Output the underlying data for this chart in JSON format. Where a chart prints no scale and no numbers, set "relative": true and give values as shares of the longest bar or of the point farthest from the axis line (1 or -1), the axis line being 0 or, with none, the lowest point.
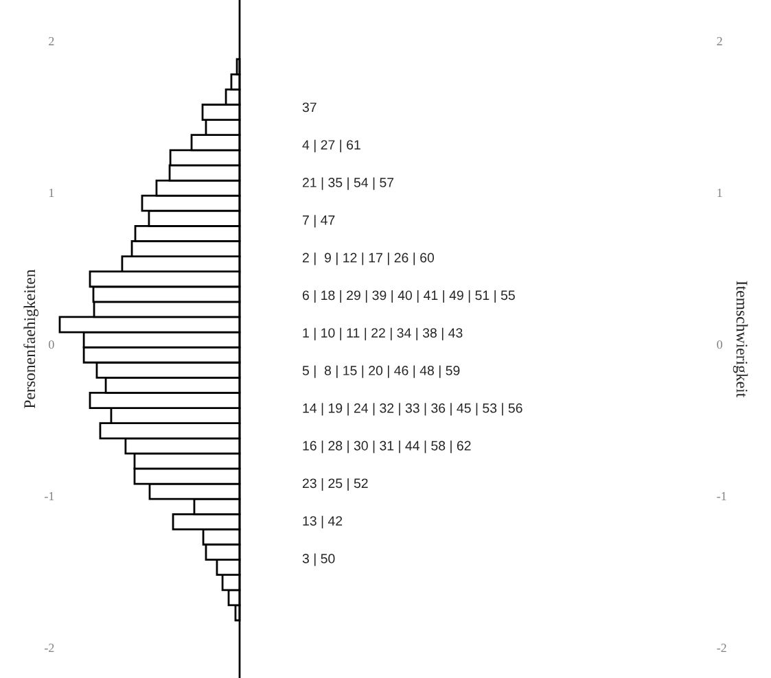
{
  "chart_data": {
    "type": "bar",
    "orientation": "horizontal",
    "relative": true,
    "x": [
      -1.77,
      -1.67,
      -1.57,
      -1.47,
      -1.37,
      -1.27,
      -1.17,
      -1.07,
      -0.97,
      -0.87,
      -0.77,
      -0.67,
      -0.57,
      -0.47,
      -0.37,
      -0.27,
      -0.17,
      -0.07,
      0.03,
      0.13,
      0.23,
      0.33,
      0.43,
      0.53,
      0.63,
      0.73,
      0.83,
      0.93,
      1.03,
      1.13,
      1.23,
      1.33,
      1.43,
      1.53,
      1.63,
      1.73,
      1.83
    ],
    "values": [
      0.023,
      0.061,
      0.095,
      0.126,
      0.187,
      0.202,
      0.37,
      0.252,
      0.5,
      0.584,
      0.584,
      0.634,
      0.775,
      0.714,
      0.832,
      0.744,
      0.794,
      0.866,
      0.866,
      1,
      0.809,
      0.813,
      0.832,
      0.653,
      0.599,
      0.58,
      0.504,
      0.542,
      0.462,
      0.389,
      0.385,
      0.267,
      0.187,
      0.206,
      0.076,
      0.046,
      0.015
    ],
    "color": "#ffffff",
    "ylabel": "Personenfaehigkeiten",
    "y2label": "Itemschwierigkeit",
    "ylim": [
      -2.2,
      2.27
    ],
    "yticks": [
      -2,
      -1,
      0,
      1,
      2
    ],
    "y2lim": [
      -2.2,
      2.27
    ],
    "y2ticks": [
      -2,
      -1,
      0,
      1,
      2
    ],
    "tick_labels": "y",
    "annotations": [
      "37",
      "4 | 27 | 61",
      "21 | 35 | 54 | 57",
      "7 | 47",
      "2 |  9 | 12 | 17 | 26 | 60",
      "6 | 18 | 29 | 39 | 40 | 41 | 49 | 51 | 55",
      "1 | 10 | 11 | 22 | 34 | 38 | 43",
      "5 |  8 | 15 | 20 | 46 | 48 | 59",
      "14 | 19 | 24 | 32 | 33 | 36 | 45 | 53 | 56",
      "16 | 28 | 30 | 31 | 44 | 58 | 62",
      "23 | 25 | 52",
      "13 | 42",
      "3 | 50"
    ]
  }
}
